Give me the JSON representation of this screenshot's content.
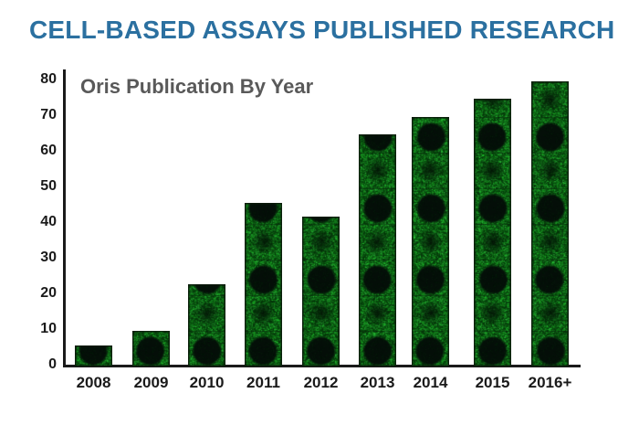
{
  "header": {
    "title": "CELL-BASED ASSAYS PUBLISHED RESEARCH",
    "title_color": "#2b70a0"
  },
  "chart": {
    "title": "Oris Publication By Year",
    "title_color": "#595959",
    "axis_color": "#1a1a1a",
    "bar_base_color": "#05380a",
    "bar_speckle_color": "#2fae35",
    "bar_circle_color": "#061009"
  },
  "chart_data": {
    "type": "bar",
    "title": "Oris Publication By Year",
    "categories": [
      "2008",
      "2009",
      "2010",
      "2011",
      "2012",
      "2013",
      "2014",
      "2015",
      "2016+"
    ],
    "values": [
      6,
      10,
      23,
      46,
      42,
      65,
      70,
      75,
      80
    ],
    "xlabel": "",
    "ylabel": "",
    "ylim": [
      0,
      80
    ],
    "yticks": [
      0,
      10,
      20,
      30,
      40,
      50,
      60,
      70,
      80
    ],
    "grid": false,
    "legend": false,
    "bar_texture": "green fluorescent cell-migration assay image tiles with dark circular exclusion zones, tiled every 10 units"
  }
}
